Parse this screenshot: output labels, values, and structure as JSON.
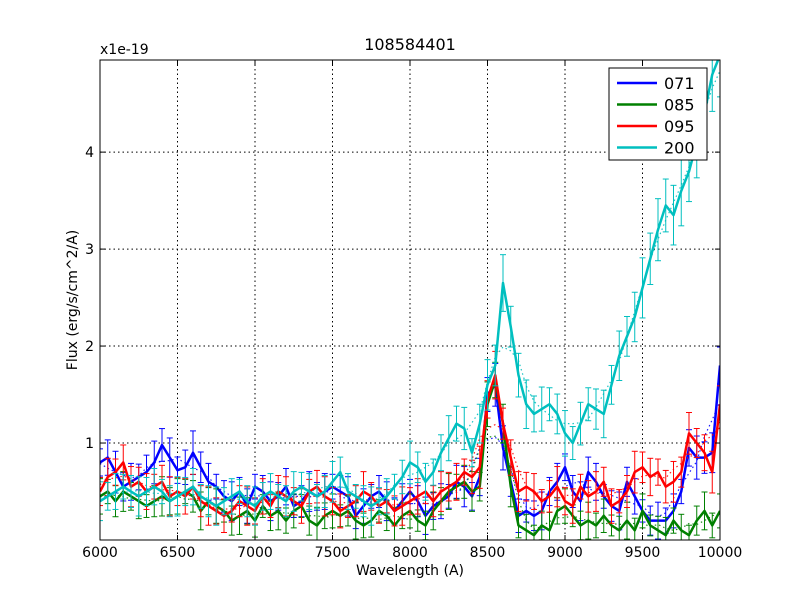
{
  "chart_data": {
    "type": "line",
    "title": "108584401",
    "xlabel": "Wavelength (A)",
    "ylabel": "Flux (erg/s/cm^2/A)",
    "y_multiplier": "x1e-19",
    "xlim": [
      6000,
      10000
    ],
    "ylim": [
      0,
      4.95
    ],
    "x_ticks": [
      6000,
      6500,
      7000,
      7500,
      8000,
      8500,
      9000,
      9500,
      10000
    ],
    "x_tick_labels": [
      "6000",
      "6500",
      "7000",
      "7500",
      "8000",
      "8500",
      "9000",
      "9500",
      "10000"
    ],
    "y_ticks": [
      1,
      2,
      3,
      4
    ],
    "y_tick_labels": [
      "1",
      "2",
      "3",
      "4"
    ],
    "grid": true,
    "legend_position": "top-right",
    "x": [
      6000,
      6050,
      6100,
      6150,
      6200,
      6250,
      6300,
      6350,
      6400,
      6450,
      6500,
      6550,
      6600,
      6650,
      6700,
      6750,
      6800,
      6850,
      6900,
      6950,
      7000,
      7050,
      7100,
      7150,
      7200,
      7250,
      7300,
      7350,
      7400,
      7450,
      7500,
      7550,
      7600,
      7650,
      7700,
      7750,
      7800,
      7850,
      7900,
      7950,
      8000,
      8050,
      8100,
      8150,
      8200,
      8250,
      8300,
      8350,
      8400,
      8450,
      8500,
      8550,
      8600,
      8650,
      8700,
      8750,
      8800,
      8850,
      8900,
      8950,
      9000,
      9050,
      9100,
      9150,
      9200,
      9250,
      9300,
      9350,
      9400,
      9450,
      9500,
      9550,
      9600,
      9650,
      9700,
      9750,
      9800,
      9850,
      9900,
      9950,
      10000
    ],
    "series": [
      {
        "name": "071",
        "color": "#0000ff",
        "values": [
          0.8,
          0.85,
          0.7,
          0.55,
          0.6,
          0.65,
          0.7,
          0.8,
          0.98,
          0.85,
          0.72,
          0.75,
          0.9,
          0.75,
          0.6,
          0.55,
          0.45,
          0.4,
          0.5,
          0.35,
          0.55,
          0.5,
          0.4,
          0.45,
          0.55,
          0.35,
          0.4,
          0.5,
          0.45,
          0.5,
          0.55,
          0.5,
          0.45,
          0.25,
          0.35,
          0.45,
          0.5,
          0.4,
          0.3,
          0.4,
          0.5,
          0.4,
          0.25,
          0.35,
          0.4,
          0.45,
          0.6,
          0.55,
          0.45,
          0.65,
          1.5,
          1.6,
          0.95,
          0.6,
          0.25,
          0.3,
          0.25,
          0.3,
          0.5,
          0.6,
          0.75,
          0.5,
          0.4,
          0.7,
          0.6,
          0.45,
          0.35,
          0.3,
          0.6,
          0.45,
          0.3,
          0.2,
          0.2,
          0.2,
          0.3,
          0.5,
          0.95,
          0.85,
          0.85,
          0.9,
          1.8
        ]
      },
      {
        "name": "085",
        "color": "#008000",
        "values": [
          0.45,
          0.5,
          0.4,
          0.5,
          0.45,
          0.4,
          0.35,
          0.4,
          0.45,
          0.4,
          0.45,
          0.5,
          0.45,
          0.3,
          0.4,
          0.35,
          0.3,
          0.2,
          0.25,
          0.3,
          0.2,
          0.35,
          0.25,
          0.3,
          0.2,
          0.3,
          0.35,
          0.2,
          0.15,
          0.25,
          0.3,
          0.25,
          0.3,
          0.2,
          0.15,
          0.2,
          0.3,
          0.25,
          0.15,
          0.25,
          0.3,
          0.2,
          0.15,
          0.3,
          0.4,
          0.5,
          0.55,
          0.6,
          0.5,
          0.55,
          1.4,
          1.65,
          1.2,
          0.55,
          0.15,
          0.1,
          0.05,
          0.15,
          0.1,
          0.3,
          0.35,
          0.25,
          0.15,
          0.2,
          0.15,
          0.25,
          0.15,
          0.1,
          0.2,
          0.1,
          0.3,
          0.15,
          0.1,
          0.05,
          0.2,
          0.1,
          0.05,
          0.2,
          0.3,
          0.15,
          0.3
        ]
      },
      {
        "name": "095",
        "color": "#ff0000",
        "values": [
          0.5,
          0.65,
          0.7,
          0.8,
          0.55,
          0.6,
          0.5,
          0.55,
          0.6,
          0.45,
          0.5,
          0.45,
          0.55,
          0.4,
          0.35,
          0.3,
          0.25,
          0.3,
          0.4,
          0.35,
          0.3,
          0.45,
          0.35,
          0.5,
          0.45,
          0.4,
          0.35,
          0.5,
          0.55,
          0.45,
          0.4,
          0.3,
          0.35,
          0.4,
          0.5,
          0.45,
          0.35,
          0.4,
          0.3,
          0.35,
          0.4,
          0.45,
          0.5,
          0.4,
          0.5,
          0.55,
          0.6,
          0.7,
          0.65,
          0.75,
          1.45,
          1.7,
          1.2,
          0.85,
          0.5,
          0.55,
          0.5,
          0.4,
          0.45,
          0.55,
          0.4,
          0.35,
          0.55,
          0.45,
          0.5,
          0.6,
          0.35,
          0.4,
          0.5,
          0.7,
          0.75,
          0.65,
          0.7,
          0.55,
          0.6,
          0.7,
          1.1,
          1.0,
          0.9,
          0.7,
          1.4
        ]
      },
      {
        "name": "200",
        "color": "#00bfbf",
        "values": [
          0.4,
          0.45,
          0.5,
          0.55,
          0.5,
          0.45,
          0.5,
          0.55,
          0.5,
          0.4,
          0.45,
          0.5,
          0.55,
          0.45,
          0.4,
          0.35,
          0.4,
          0.45,
          0.5,
          0.4,
          0.35,
          0.45,
          0.5,
          0.45,
          0.4,
          0.5,
          0.55,
          0.5,
          0.45,
          0.5,
          0.6,
          0.7,
          0.5,
          0.45,
          0.4,
          0.35,
          0.4,
          0.45,
          0.55,
          0.65,
          0.8,
          0.75,
          0.6,
          0.7,
          0.9,
          1.05,
          1.2,
          1.15,
          0.9,
          1.2,
          1.6,
          1.8,
          2.65,
          2.2,
          1.7,
          1.4,
          1.3,
          1.35,
          1.4,
          1.3,
          1.1,
          1.0,
          1.2,
          1.4,
          1.35,
          1.3,
          1.6,
          1.9,
          2.1,
          2.3,
          2.6,
          2.9,
          3.2,
          3.45,
          3.35,
          3.6,
          3.8,
          4.1,
          4.4,
          4.8,
          5.0
        ]
      }
    ]
  }
}
